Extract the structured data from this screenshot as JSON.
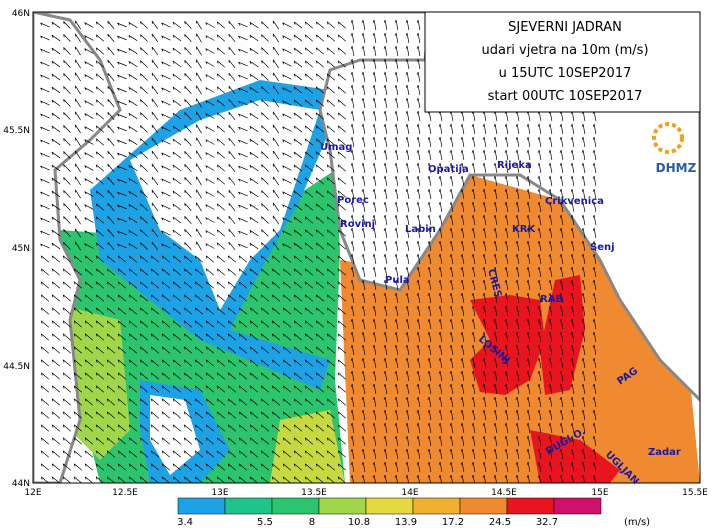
{
  "header": {
    "title_lines": [
      "SJEVERNI JADRAN",
      "udari vjetra na 10m (m/s)",
      "u 15UTC 10SEP2017",
      "start 00UTC 10SEP2017"
    ],
    "logo": "DHMZ"
  },
  "axes": {
    "lat_labels": [
      "46N",
      "45.5N",
      "45N",
      "44.5N",
      "44N"
    ],
    "lon_labels": [
      "12E",
      "12.5E",
      "13E",
      "13.5E",
      "14E",
      "14.5E",
      "15E",
      "15.5E"
    ]
  },
  "places": [
    "Umag",
    "Opatija",
    "Rijeka",
    "Porec",
    "Crikvenica",
    "Rovinj",
    "Labin",
    "KRK",
    "Senj",
    "Pula",
    "CRES",
    "RAB",
    "LOSINJ",
    "PAG",
    "UGLJAN",
    "Zadar",
    "DUGI O."
  ],
  "colorbar": {
    "labels": [
      "3.4",
      "5.5",
      "8",
      "10.8",
      "13.9",
      "17.2",
      "24.5",
      "32.7"
    ],
    "unit": "(m/s)"
  }
}
